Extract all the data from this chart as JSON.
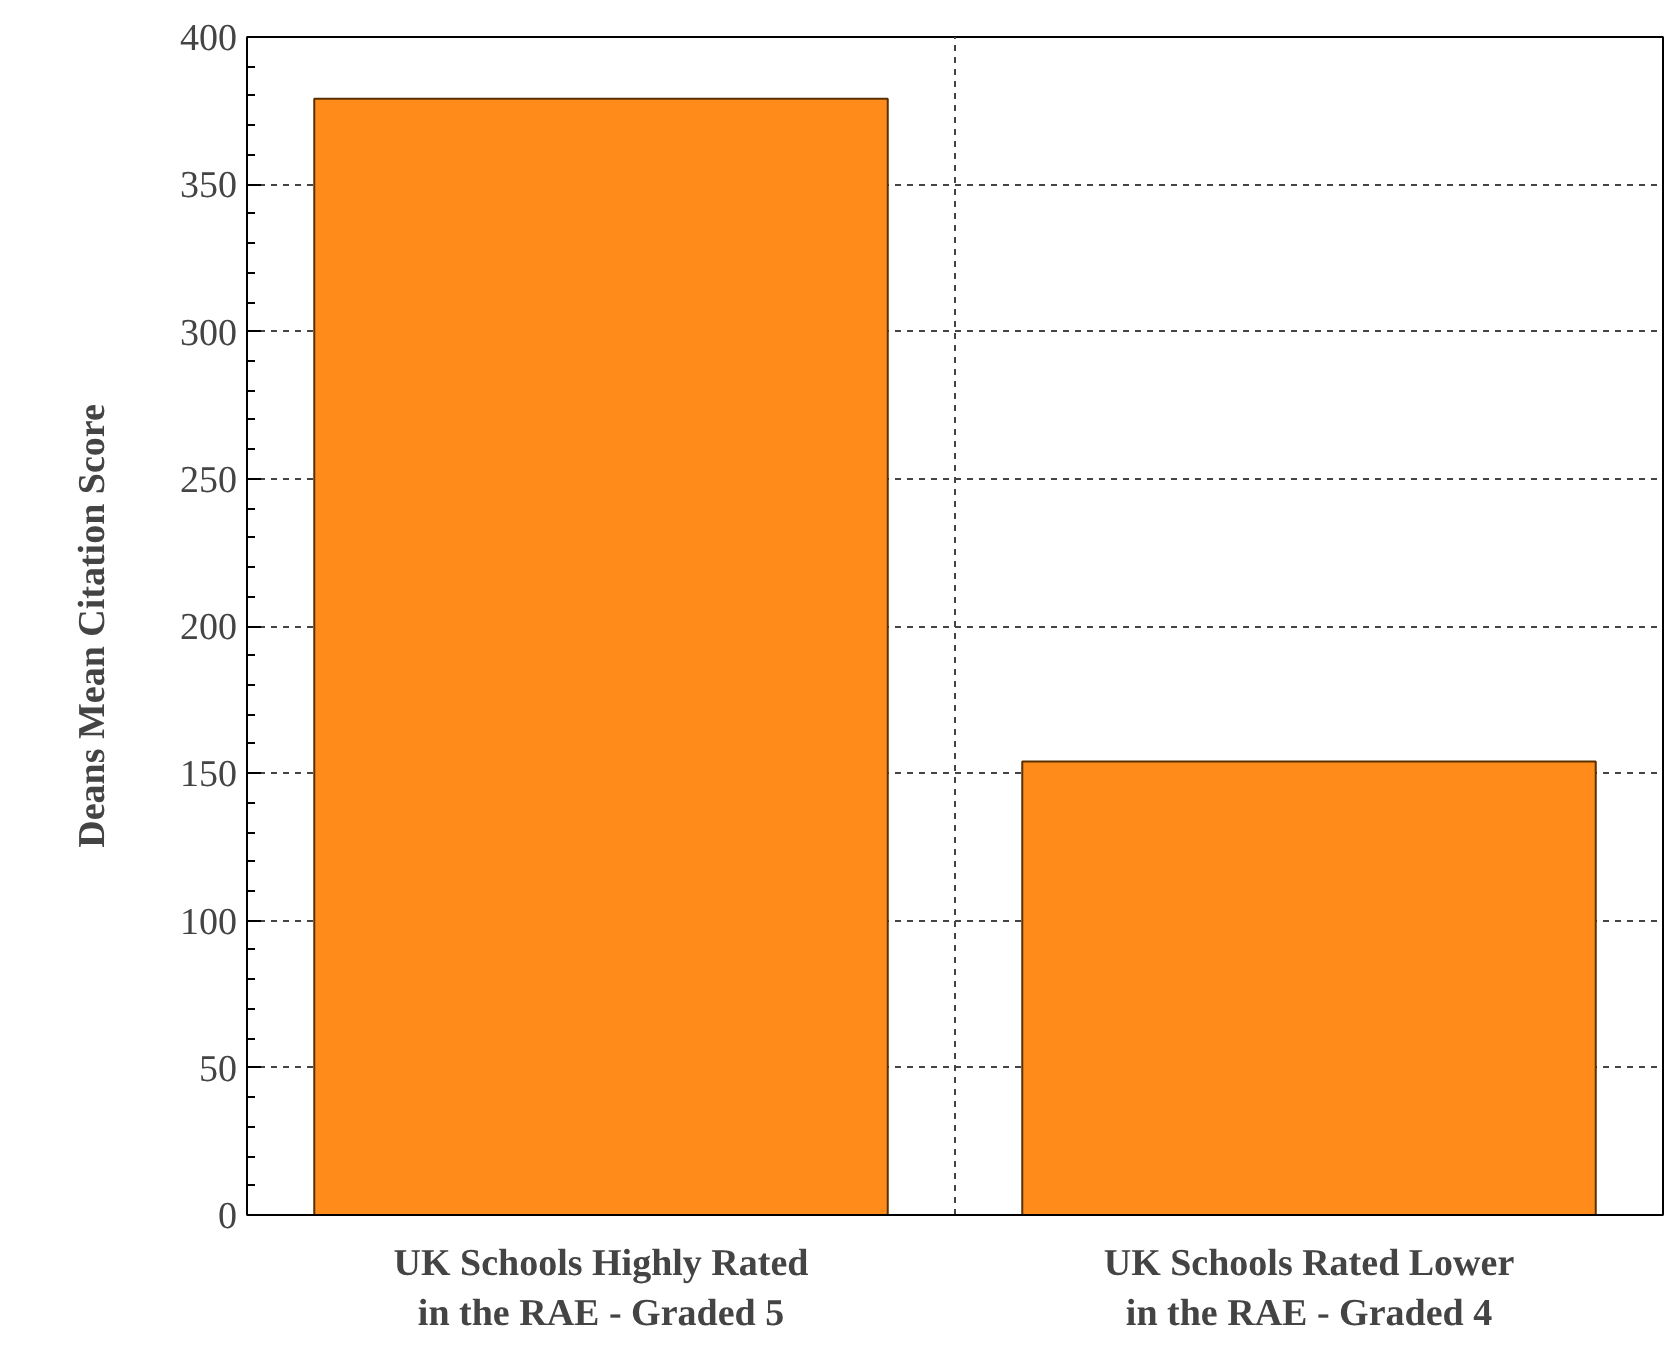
{
  "chart_data": {
    "type": "bar",
    "ylabel": "Deans Mean Citation Score",
    "categories": [
      "UK Schools Highly Rated\nin the RAE - Graded 5",
      "UK Schools Rated Lower\nin the RAE - Graded 4"
    ],
    "values": [
      379,
      154
    ],
    "color": "#ff8c1a",
    "ylim": [
      0,
      400
    ],
    "yticks": [
      0,
      50,
      100,
      150,
      200,
      250,
      300,
      350,
      400
    ],
    "grid": true
  }
}
